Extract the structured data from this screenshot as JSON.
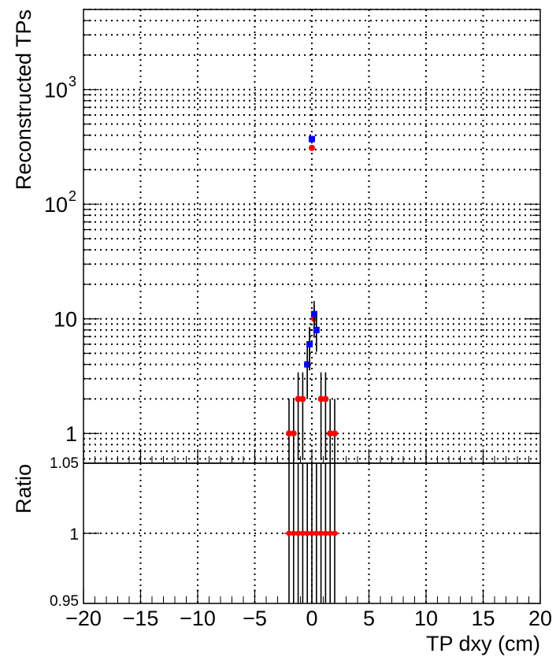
{
  "chart_data": [
    {
      "panel": "main",
      "type": "scatter",
      "ylabel": "Reconstructed TPs",
      "log_y": true,
      "ylim": [
        0.55,
        5000
      ],
      "xlim": [
        -20,
        20
      ],
      "grid": true,
      "yticks": [
        {
          "value": 1,
          "base": "1",
          "exp": ""
        },
        {
          "value": 10,
          "base": "10",
          "exp": ""
        },
        {
          "value": 100,
          "base": "10",
          "exp": "2"
        },
        {
          "value": 1000,
          "base": "10",
          "exp": "3"
        }
      ],
      "series": [
        {
          "color": "#ff0000",
          "marker": "circle",
          "points": [
            {
              "x": -2.0,
              "y": 1,
              "xerr": 0.2
            },
            {
              "x": -1.6,
              "y": 1,
              "xerr": 0.2
            },
            {
              "x": -1.2,
              "y": 2,
              "xerr": 0.2
            },
            {
              "x": -0.8,
              "y": 2,
              "xerr": 0.2
            },
            {
              "x": -0.4,
              "y": 4,
              "xerr": 0.2
            },
            {
              "x": -0.2,
              "y": 6,
              "xerr": 0.2
            },
            {
              "x": 0.0,
              "y": 310,
              "xerr": 0.2
            },
            {
              "x": 0.2,
              "y": 10,
              "xerr": 0.2
            },
            {
              "x": 0.4,
              "y": 8,
              "xerr": 0.2
            },
            {
              "x": 0.8,
              "y": 2,
              "xerr": 0.2
            },
            {
              "x": 1.2,
              "y": 2,
              "xerr": 0.2
            },
            {
              "x": 1.6,
              "y": 1,
              "xerr": 0.2
            },
            {
              "x": 2.0,
              "y": 1,
              "xerr": 0.2
            }
          ]
        },
        {
          "color": "#0000ff",
          "marker": "square",
          "points": [
            {
              "x": -0.4,
              "y": 4,
              "xerr": 0.2
            },
            {
              "x": -0.2,
              "y": 6,
              "xerr": 0.2
            },
            {
              "x": 0.0,
              "y": 370,
              "xerr": 0.2
            },
            {
              "x": 0.2,
              "y": 11,
              "xerr": 0.2
            },
            {
              "x": 0.4,
              "y": 8,
              "xerr": 0.2
            }
          ]
        }
      ]
    },
    {
      "panel": "ratio",
      "type": "scatter",
      "ylabel": "Ratio",
      "ylim": [
        0.95,
        1.05
      ],
      "grid": true,
      "yticks": [
        {
          "value": 0.95,
          "label": "0.95"
        },
        {
          "value": 1.0,
          "label": "1"
        },
        {
          "value": 1.05,
          "label": "1.05"
        }
      ],
      "xlabel": "TP dxy (cm)",
      "xlim": [
        -20,
        20
      ],
      "xticks": [
        -20,
        -15,
        -10,
        -5,
        0,
        5,
        10,
        15,
        20
      ],
      "xtick_labels": [
        "−20",
        "−15",
        "−10",
        "−5",
        "0",
        "5",
        "10",
        "15",
        "20"
      ],
      "series": [
        {
          "color": "#ff0000",
          "marker": "circle",
          "points": [
            {
              "x": -2.0,
              "y": 1
            },
            {
              "x": -1.6,
              "y": 1
            },
            {
              "x": -1.2,
              "y": 1
            },
            {
              "x": -0.8,
              "y": 1
            },
            {
              "x": -0.4,
              "y": 1
            },
            {
              "x": 0.0,
              "y": 1
            },
            {
              "x": 0.4,
              "y": 1
            },
            {
              "x": 0.8,
              "y": 1
            },
            {
              "x": 1.2,
              "y": 1
            },
            {
              "x": 1.6,
              "y": 1
            },
            {
              "x": 2.0,
              "y": 1
            }
          ]
        }
      ]
    }
  ]
}
